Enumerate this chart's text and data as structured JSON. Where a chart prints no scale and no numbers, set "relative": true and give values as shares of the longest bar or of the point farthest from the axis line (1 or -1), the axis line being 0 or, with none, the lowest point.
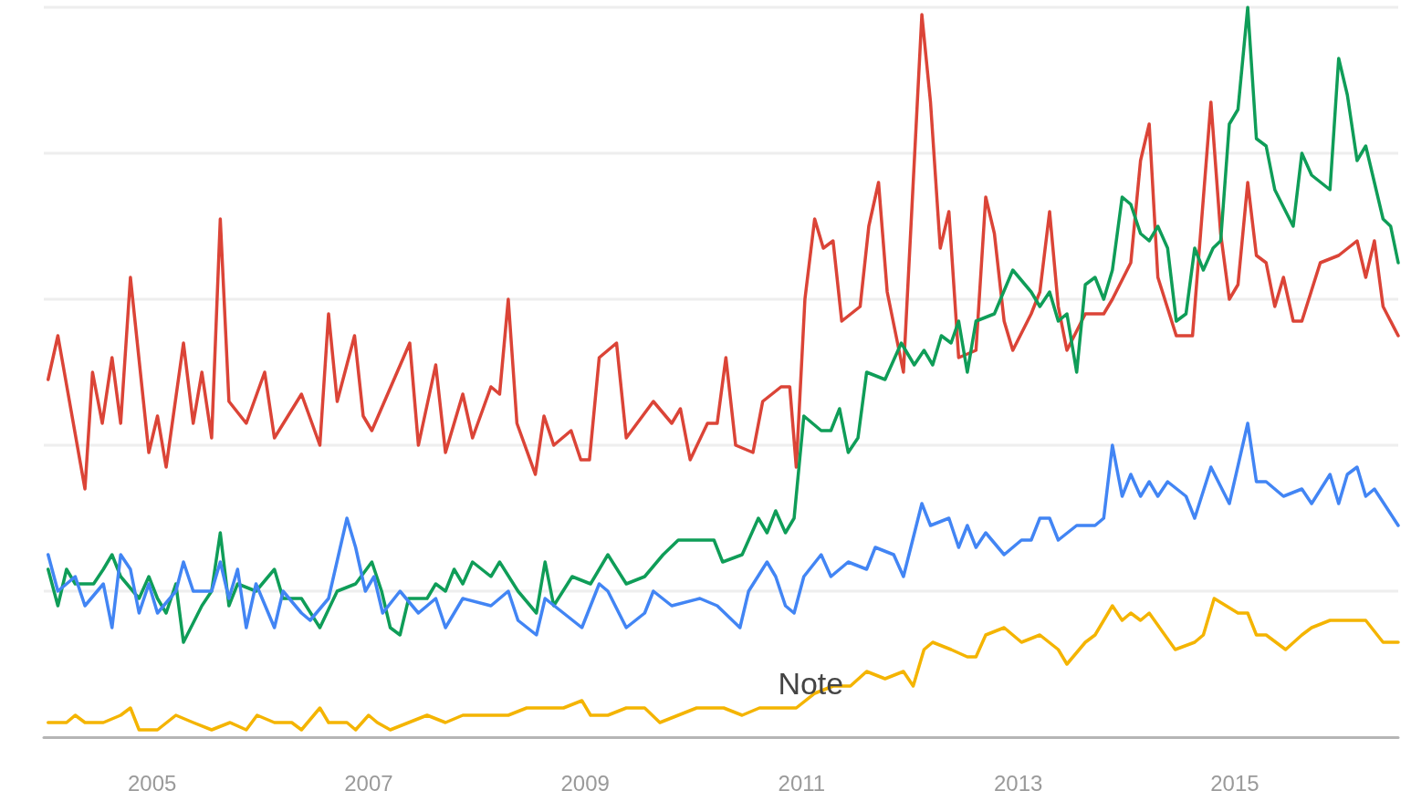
{
  "chart_data": {
    "type": "line",
    "relative": true,
    "grid": "y",
    "marker": "none",
    "line_style": "solid",
    "xlim": [
      2004,
      2016.51
    ],
    "xticks": [
      2005,
      2007,
      2009,
      2011,
      2013,
      2015
    ],
    "annotations": [
      {
        "text": "Note",
        "x": 2011,
        "y": 0.04
      }
    ],
    "series": [
      {
        "color": "#db4437",
        "x": [
          2004.04,
          2004.13,
          2004.38,
          2004.45,
          2004.54,
          2004.63,
          2004.71,
          2004.8,
          2004.97,
          2005.05,
          2005.13,
          2005.29,
          2005.38,
          2005.46,
          2005.55,
          2005.63,
          2005.71,
          2005.87,
          2006.04,
          2006.13,
          2006.38,
          2006.55,
          2006.63,
          2006.71,
          2006.87,
          2006.95,
          2007.03,
          2007.38,
          2007.46,
          2007.62,
          2007.71,
          2007.87,
          2007.96,
          2008.13,
          2008.21,
          2008.29,
          2008.37,
          2008.54,
          2008.62,
          2008.71,
          2008.87,
          2008.96,
          2009.04,
          2009.13,
          2009.29,
          2009.38,
          2009.63,
          2009.8,
          2009.88,
          2009.97,
          2010.13,
          2010.22,
          2010.3,
          2010.39,
          2010.55,
          2010.64,
          2010.81,
          2010.89,
          2010.95,
          2011.03,
          2011.12,
          2011.2,
          2011.29,
          2011.37,
          2011.54,
          2011.62,
          2011.71,
          2011.79,
          2011.94,
          2012.11,
          2012.19,
          2012.28,
          2012.36,
          2012.45,
          2012.61,
          2012.7,
          2012.78,
          2012.87,
          2012.95,
          2013.12,
          2013.2,
          2013.29,
          2013.37,
          2013.45,
          2013.62,
          2013.79,
          2013.87,
          2014.04,
          2014.13,
          2014.21,
          2014.29,
          2014.46,
          2014.61,
          2014.78,
          2014.87,
          2014.95,
          2015.03,
          2015.12,
          2015.2,
          2015.29,
          2015.37,
          2015.45,
          2015.54,
          2015.62,
          2015.79,
          2015.96,
          2016.13,
          2016.21,
          2016.29,
          2016.37,
          2016.51
        ],
        "values": [
          0.49,
          0.55,
          0.34,
          0.5,
          0.43,
          0.52,
          0.43,
          0.63,
          0.39,
          0.44,
          0.37,
          0.54,
          0.43,
          0.5,
          0.41,
          0.71,
          0.46,
          0.43,
          0.5,
          0.41,
          0.47,
          0.4,
          0.58,
          0.46,
          0.55,
          0.44,
          0.42,
          0.54,
          0.4,
          0.51,
          0.39,
          0.47,
          0.41,
          0.48,
          0.47,
          0.6,
          0.43,
          0.36,
          0.44,
          0.4,
          0.42,
          0.38,
          0.38,
          0.52,
          0.54,
          0.41,
          0.46,
          0.43,
          0.45,
          0.38,
          0.43,
          0.43,
          0.52,
          0.4,
          0.39,
          0.46,
          0.48,
          0.48,
          0.37,
          0.6,
          0.71,
          0.67,
          0.68,
          0.57,
          0.59,
          0.7,
          0.76,
          0.61,
          0.5,
          0.99,
          0.87,
          0.67,
          0.72,
          0.52,
          0.53,
          0.74,
          0.69,
          0.57,
          0.53,
          0.58,
          0.61,
          0.72,
          0.59,
          0.53,
          0.58,
          0.58,
          0.6,
          0.65,
          0.79,
          0.84,
          0.63,
          0.55,
          0.55,
          0.87,
          0.69,
          0.6,
          0.62,
          0.76,
          0.66,
          0.65,
          0.59,
          0.63,
          0.57,
          0.57,
          0.65,
          0.66,
          0.68,
          0.63,
          0.68,
          0.59,
          0.55
        ]
      },
      {
        "color": "#0f9d58",
        "x": [
          2004.04,
          2004.13,
          2004.21,
          2004.29,
          2004.46,
          2004.55,
          2004.63,
          2004.71,
          2004.88,
          2004.97,
          2005.05,
          2005.13,
          2005.22,
          2005.29,
          2005.46,
          2005.55,
          2005.63,
          2005.71,
          2005.79,
          2005.96,
          2006.13,
          2006.21,
          2006.38,
          2006.55,
          2006.71,
          2006.88,
          2007.03,
          2007.12,
          2007.2,
          2007.29,
          2007.37,
          2007.54,
          2007.62,
          2007.71,
          2007.79,
          2007.87,
          2007.96,
          2008.13,
          2008.21,
          2008.38,
          2008.55,
          2008.63,
          2008.71,
          2008.88,
          2009.05,
          2009.21,
          2009.38,
          2009.55,
          2009.72,
          2009.86,
          2010.11,
          2010.19,
          2010.27,
          2010.45,
          2010.6,
          2010.68,
          2010.76,
          2010.85,
          2010.93,
          2011.02,
          2011.18,
          2011.27,
          2011.35,
          2011.43,
          2011.52,
          2011.6,
          2011.77,
          2011.92,
          2012.04,
          2012.13,
          2012.21,
          2012.29,
          2012.38,
          2012.45,
          2012.53,
          2012.61,
          2012.78,
          2012.95,
          2013.12,
          2013.2,
          2013.29,
          2013.37,
          2013.45,
          2013.54,
          2013.62,
          2013.71,
          2013.79,
          2013.87,
          2013.96,
          2014.04,
          2014.13,
          2014.21,
          2014.29,
          2014.38,
          2014.46,
          2014.55,
          2014.63,
          2014.71,
          2014.8,
          2014.87,
          2014.95,
          2015.03,
          2015.12,
          2015.2,
          2015.29,
          2015.37,
          2015.54,
          2015.62,
          2015.71,
          2015.88,
          2015.96,
          2016.04,
          2016.13,
          2016.21,
          2016.37,
          2016.44,
          2016.51
        ],
        "values": [
          0.23,
          0.18,
          0.23,
          0.21,
          0.21,
          0.23,
          0.25,
          0.22,
          0.19,
          0.22,
          0.19,
          0.17,
          0.21,
          0.13,
          0.18,
          0.2,
          0.28,
          0.18,
          0.21,
          0.2,
          0.23,
          0.19,
          0.19,
          0.15,
          0.2,
          0.21,
          0.24,
          0.2,
          0.15,
          0.14,
          0.19,
          0.19,
          0.21,
          0.2,
          0.23,
          0.21,
          0.24,
          0.22,
          0.24,
          0.2,
          0.17,
          0.24,
          0.18,
          0.22,
          0.21,
          0.25,
          0.21,
          0.22,
          0.25,
          0.27,
          0.27,
          0.27,
          0.24,
          0.25,
          0.3,
          0.28,
          0.31,
          0.28,
          0.3,
          0.44,
          0.42,
          0.42,
          0.45,
          0.39,
          0.41,
          0.5,
          0.49,
          0.54,
          0.51,
          0.53,
          0.51,
          0.55,
          0.54,
          0.57,
          0.5,
          0.57,
          0.58,
          0.64,
          0.61,
          0.59,
          0.61,
          0.57,
          0.58,
          0.5,
          0.62,
          0.63,
          0.6,
          0.64,
          0.74,
          0.73,
          0.69,
          0.68,
          0.7,
          0.67,
          0.57,
          0.58,
          0.67,
          0.64,
          0.67,
          0.68,
          0.84,
          0.86,
          1.0,
          0.82,
          0.81,
          0.75,
          0.7,
          0.8,
          0.77,
          0.75,
          0.93,
          0.88,
          0.79,
          0.81,
          0.71,
          0.7,
          0.65
        ]
      },
      {
        "color": "#4285f4",
        "x": [
          2004.04,
          2004.13,
          2004.29,
          2004.38,
          2004.55,
          2004.63,
          2004.71,
          2004.8,
          2004.88,
          2004.97,
          2005.05,
          2005.22,
          2005.29,
          2005.38,
          2005.55,
          2005.63,
          2005.71,
          2005.79,
          2005.87,
          2005.96,
          2006.13,
          2006.21,
          2006.38,
          2006.46,
          2006.63,
          2006.8,
          2006.88,
          2006.97,
          2007.05,
          2007.13,
          2007.29,
          2007.46,
          2007.62,
          2007.71,
          2007.87,
          2008.13,
          2008.29,
          2008.38,
          2008.55,
          2008.63,
          2008.8,
          2008.97,
          2009.13,
          2009.21,
          2009.38,
          2009.55,
          2009.63,
          2009.8,
          2010.06,
          2010.22,
          2010.43,
          2010.51,
          2010.68,
          2010.76,
          2010.85,
          2010.93,
          2011.02,
          2011.18,
          2011.27,
          2011.43,
          2011.6,
          2011.68,
          2011.85,
          2011.94,
          2012.11,
          2012.19,
          2012.36,
          2012.45,
          2012.53,
          2012.61,
          2012.7,
          2012.87,
          2013.03,
          2013.12,
          2013.2,
          2013.29,
          2013.37,
          2013.54,
          2013.71,
          2013.79,
          2013.87,
          2013.96,
          2014.04,
          2014.13,
          2014.21,
          2014.29,
          2014.38,
          2014.55,
          2014.63,
          2014.78,
          2014.95,
          2015.12,
          2015.2,
          2015.29,
          2015.45,
          2015.62,
          2015.71,
          2015.88,
          2015.96,
          2016.04,
          2016.13,
          2016.21,
          2016.29,
          2016.51
        ],
        "values": [
          0.25,
          0.2,
          0.22,
          0.18,
          0.21,
          0.15,
          0.25,
          0.23,
          0.17,
          0.21,
          0.17,
          0.2,
          0.24,
          0.2,
          0.2,
          0.24,
          0.19,
          0.23,
          0.15,
          0.21,
          0.15,
          0.2,
          0.17,
          0.16,
          0.19,
          0.3,
          0.26,
          0.2,
          0.22,
          0.17,
          0.2,
          0.17,
          0.19,
          0.15,
          0.19,
          0.18,
          0.2,
          0.16,
          0.14,
          0.19,
          0.17,
          0.15,
          0.21,
          0.2,
          0.15,
          0.17,
          0.2,
          0.18,
          0.19,
          0.18,
          0.15,
          0.2,
          0.24,
          0.22,
          0.18,
          0.17,
          0.22,
          0.25,
          0.22,
          0.24,
          0.23,
          0.26,
          0.25,
          0.22,
          0.32,
          0.29,
          0.3,
          0.26,
          0.29,
          0.26,
          0.28,
          0.25,
          0.27,
          0.27,
          0.3,
          0.3,
          0.27,
          0.29,
          0.29,
          0.3,
          0.4,
          0.33,
          0.36,
          0.33,
          0.35,
          0.33,
          0.35,
          0.33,
          0.3,
          0.37,
          0.32,
          0.43,
          0.35,
          0.35,
          0.33,
          0.34,
          0.32,
          0.36,
          0.32,
          0.36,
          0.37,
          0.33,
          0.34,
          0.29
        ]
      },
      {
        "color": "#f4b400",
        "x": [
          2004.04,
          2004.21,
          2004.29,
          2004.38,
          2004.55,
          2004.71,
          2004.8,
          2004.88,
          2005.05,
          2005.22,
          2005.38,
          2005.55,
          2005.72,
          2005.87,
          2005.97,
          2006.13,
          2006.29,
          2006.38,
          2006.55,
          2006.63,
          2006.8,
          2006.88,
          2007.0,
          2007.08,
          2007.2,
          2007.37,
          2007.54,
          2007.71,
          2007.87,
          2008.13,
          2008.29,
          2008.46,
          2008.63,
          2008.8,
          2008.97,
          2009.05,
          2009.21,
          2009.38,
          2009.55,
          2009.69,
          2009.86,
          2010.03,
          2010.28,
          2010.45,
          2010.61,
          2010.78,
          2010.95,
          2011.12,
          2011.29,
          2011.45,
          2011.6,
          2011.77,
          2011.94,
          2012.03,
          2012.13,
          2012.21,
          2012.38,
          2012.53,
          2012.61,
          2012.7,
          2012.87,
          2013.03,
          2013.2,
          2013.37,
          2013.45,
          2013.62,
          2013.71,
          2013.87,
          2013.96,
          2014.04,
          2014.13,
          2014.21,
          2014.45,
          2014.63,
          2014.71,
          2014.81,
          2015.03,
          2015.12,
          2015.2,
          2015.29,
          2015.47,
          2015.62,
          2015.71,
          2015.88,
          2016.04,
          2016.21,
          2016.37,
          2016.51
        ],
        "values": [
          0.02,
          0.02,
          0.03,
          0.02,
          0.02,
          0.03,
          0.04,
          0.01,
          0.01,
          0.03,
          0.02,
          0.01,
          0.02,
          0.01,
          0.03,
          0.02,
          0.02,
          0.01,
          0.04,
          0.02,
          0.02,
          0.01,
          0.03,
          0.02,
          0.01,
          0.02,
          0.03,
          0.02,
          0.03,
          0.03,
          0.03,
          0.04,
          0.04,
          0.04,
          0.05,
          0.03,
          0.03,
          0.04,
          0.04,
          0.02,
          0.03,
          0.04,
          0.04,
          0.03,
          0.04,
          0.04,
          0.04,
          0.06,
          0.07,
          0.07,
          0.09,
          0.08,
          0.09,
          0.07,
          0.12,
          0.13,
          0.12,
          0.11,
          0.11,
          0.14,
          0.15,
          0.13,
          0.14,
          0.12,
          0.1,
          0.13,
          0.14,
          0.18,
          0.16,
          0.17,
          0.16,
          0.17,
          0.12,
          0.13,
          0.14,
          0.19,
          0.17,
          0.17,
          0.14,
          0.14,
          0.12,
          0.14,
          0.15,
          0.16,
          0.16,
          0.16,
          0.13,
          0.13
        ]
      }
    ]
  }
}
